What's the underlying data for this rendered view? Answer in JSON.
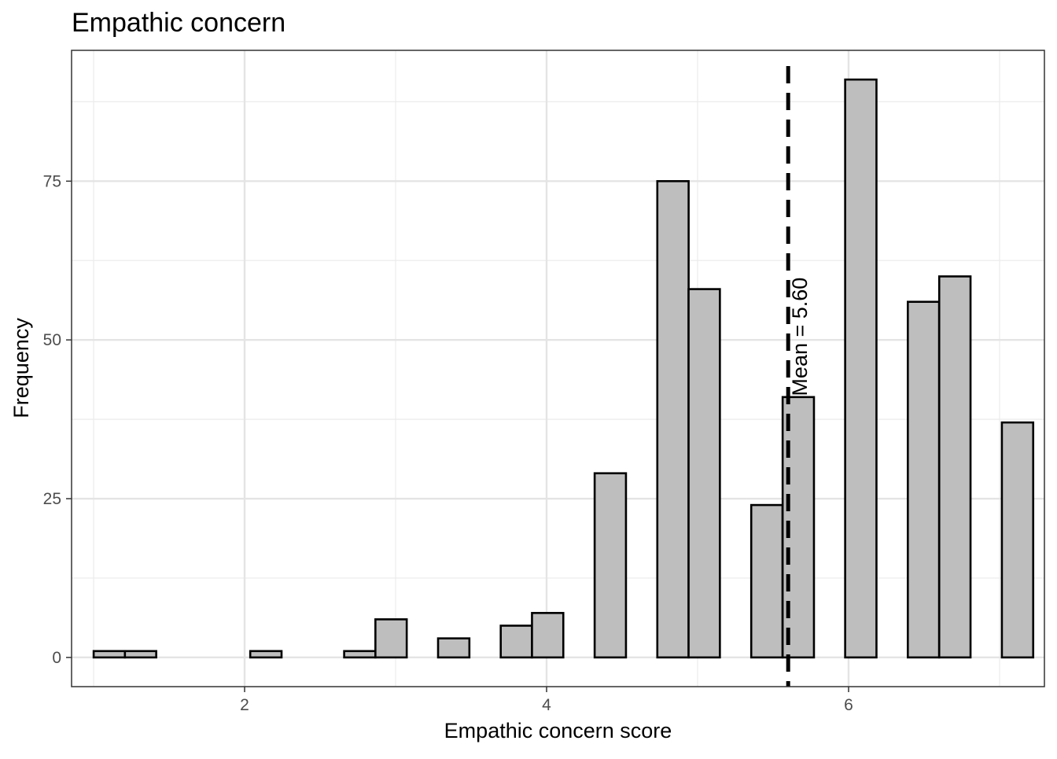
{
  "chart_data": {
    "type": "bar",
    "title": "Empathic concern",
    "xlabel": "Empathic concern score",
    "ylabel": "Frequency",
    "xlim": [
      0.854,
      7.297
    ],
    "ylim": [
      -4.6,
      95.6
    ],
    "x_ticks": [
      2,
      4,
      6
    ],
    "y_ticks": [
      0,
      25,
      50,
      75
    ],
    "bin_width": 0.2074,
    "bins": [
      {
        "x": 1.104,
        "count": 1
      },
      {
        "x": 1.311,
        "count": 1
      },
      {
        "x": 1.518,
        "count": 0
      },
      {
        "x": 1.726,
        "count": 0
      },
      {
        "x": 1.933,
        "count": 0
      },
      {
        "x": 2.141,
        "count": 1
      },
      {
        "x": 2.348,
        "count": 0
      },
      {
        "x": 2.555,
        "count": 0
      },
      {
        "x": 2.763,
        "count": 1
      },
      {
        "x": 2.97,
        "count": 6
      },
      {
        "x": 3.178,
        "count": 0
      },
      {
        "x": 3.385,
        "count": 3
      },
      {
        "x": 3.593,
        "count": 0
      },
      {
        "x": 3.8,
        "count": 5
      },
      {
        "x": 4.007,
        "count": 7
      },
      {
        "x": 4.215,
        "count": 0
      },
      {
        "x": 4.422,
        "count": 29
      },
      {
        "x": 4.63,
        "count": 0
      },
      {
        "x": 4.837,
        "count": 75
      },
      {
        "x": 5.044,
        "count": 58
      },
      {
        "x": 5.252,
        "count": 0
      },
      {
        "x": 5.459,
        "count": 24
      },
      {
        "x": 5.667,
        "count": 41
      },
      {
        "x": 5.874,
        "count": 0
      },
      {
        "x": 6.081,
        "count": 91
      },
      {
        "x": 6.289,
        "count": 0
      },
      {
        "x": 6.496,
        "count": 56
      },
      {
        "x": 6.704,
        "count": 60
      },
      {
        "x": 6.911,
        "count": 0
      },
      {
        "x": 7.119,
        "count": 37
      }
    ],
    "mean_line": {
      "x": 5.6,
      "label": "Mean = 5.60",
      "style": "dashed"
    },
    "bar_fill": "#bebebe",
    "bar_stroke": "#000000",
    "grid": true,
    "legend": "none"
  }
}
